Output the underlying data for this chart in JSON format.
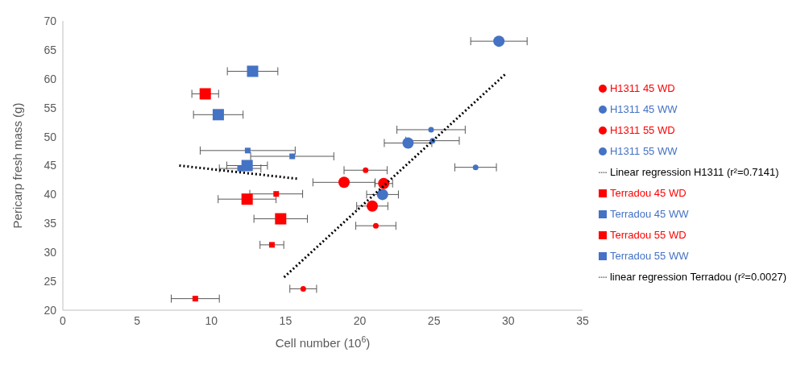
{
  "chart_data": {
    "type": "scatter",
    "xlabel": "Cell number (10$^{6}$)",
    "ylabel": "Pericarp fresh mass (g)",
    "xlim": [
      0,
      35
    ],
    "xticks": [
      0,
      5,
      10,
      15,
      20,
      25,
      30,
      35
    ],
    "ylim": [
      20,
      70
    ],
    "yticks": [
      20,
      25,
      30,
      35,
      40,
      45,
      50,
      55,
      60,
      65,
      70
    ],
    "grid": false,
    "legend": "right",
    "series": [
      {
        "name": "Terradou 55 WW",
        "color": "#4472c4",
        "marker": "square",
        "x": [
          12.78,
          10.47,
          12.41
        ],
        "values": [
          61.3,
          53.8,
          45.0
        ],
        "xerrors": [
          1.7,
          1.67,
          1.37
        ]
      },
      {
        "name": "Terradou 55 WD",
        "color": "#ff0000",
        "marker": "square",
        "x": [
          9.59,
          12.41,
          14.67
        ],
        "values": [
          57.4,
          39.2,
          35.8
        ],
        "xerrors": [
          0.9,
          1.95,
          1.8
        ]
      },
      {
        "name": "H1311 55 WW",
        "color": "#4472c4",
        "marker": "circle",
        "x": [
          29.37,
          23.25,
          21.53
        ],
        "values": [
          66.5,
          48.9,
          40.0
        ],
        "xerrors": [
          1.9,
          1.6,
          1.07
        ]
      },
      {
        "name": "H1311 55 WD",
        "color": "#ff0000",
        "marker": "circle",
        "x": [
          18.94,
          21.61,
          20.84
        ],
        "values": [
          42.1,
          41.9,
          38.0
        ],
        "xerrors": [
          2.1,
          0.6,
          1.05
        ]
      },
      {
        "name": "Terradou 45 WW",
        "color": "#4472c4",
        "marker": "square",
        "x": [
          12.45,
          15.45,
          11.94
        ],
        "values": [
          47.6,
          46.6,
          44.5
        ],
        "xerrors": [
          3.2,
          2.8,
          1.4
        ]
      },
      {
        "name": "Terradou 45 WD",
        "color": "#ff0000",
        "marker": "square",
        "x": [
          14.37,
          14.08,
          8.92
        ],
        "values": [
          40.1,
          31.3,
          22.0
        ],
        "xerrors": [
          1.78,
          0.8,
          1.62
        ]
      },
      {
        "name": "H1311 45 WW",
        "color": "#4472c4",
        "marker": "circle",
        "x": [
          24.8,
          24.9,
          27.8
        ],
        "values": [
          51.2,
          49.3,
          44.7
        ],
        "xerrors": [
          2.3,
          1.8,
          1.4
        ]
      },
      {
        "name": "H1311 45 WD",
        "color": "#ff0000",
        "marker": "circle",
        "x": [
          20.39,
          21.08,
          16.19
        ],
        "values": [
          44.2,
          34.6,
          23.7
        ],
        "xerrors": [
          1.45,
          1.35,
          0.9
        ]
      },
      {
        "name": "Linear regression H1311 (r²=0.7141)",
        "type": "line",
        "line_style": "dotted",
        "marker": "none",
        "color": "#000000",
        "x": [
          14.9,
          29.84
        ],
        "values": [
          25.7,
          60.9
        ]
      },
      {
        "name": "linear regression Terradou (r²=0.0027)",
        "type": "line",
        "line_style": "dotted",
        "marker": "none",
        "color": "#000000",
        "x": [
          7.84,
          15.88
        ],
        "values": [
          45.0,
          42.7
        ]
      }
    ]
  }
}
